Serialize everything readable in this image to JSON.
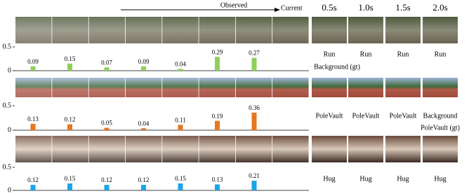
{
  "header": {
    "observed": "Observed",
    "current": "Current",
    "horizons": [
      "0.5s",
      "1.0s",
      "1.5s",
      "2.0s"
    ]
  },
  "rows": [
    {
      "chart": {
        "type": "bar",
        "values": [
          0.09,
          0.15,
          0.07,
          0.09,
          0.04,
          0.29,
          0.27
        ],
        "color": "#8fcf5a",
        "ylim": [
          0,
          0.5
        ],
        "yticks": [
          0,
          0.5
        ]
      },
      "predictions": [
        {
          "label": "Run",
          "color": "#e0201b"
        },
        {
          "label": "Run",
          "color": "#000000"
        },
        {
          "label": "Run",
          "color": "#000000"
        },
        {
          "label": "Run",
          "color": "#000000"
        }
      ],
      "ground_truth": "Background (gt)"
    },
    {
      "chart": {
        "type": "bar",
        "values": [
          0.13,
          0.12,
          0.05,
          0.04,
          0.11,
          0.19,
          0.36
        ],
        "color": "#e8771e",
        "ylim": [
          0,
          0.5
        ],
        "yticks": [
          0,
          0.5
        ]
      },
      "predictions": [
        {
          "label": "PoleVault",
          "color": "#000000"
        },
        {
          "label": "PoleVault",
          "color": "#000000"
        },
        {
          "label": "PoleVault",
          "color": "#000000"
        },
        {
          "label": "Background",
          "color": "#e0201b"
        }
      ],
      "ground_truth": "PoleVault (gt)"
    },
    {
      "chart": {
        "type": "bar",
        "values": [
          0.12,
          0.15,
          0.12,
          0.12,
          0.15,
          0.13,
          0.21
        ],
        "color": "#1aa5e6",
        "ylim": [
          0,
          0.5
        ],
        "yticks": [
          0,
          0.5
        ]
      },
      "predictions": [
        {
          "label": "Hug",
          "color": "#000000"
        },
        {
          "label": "Hug",
          "color": "#000000"
        },
        {
          "label": "Hug",
          "color": "#000000"
        },
        {
          "label": "Hug",
          "color": "#000000"
        }
      ]
    }
  ]
}
